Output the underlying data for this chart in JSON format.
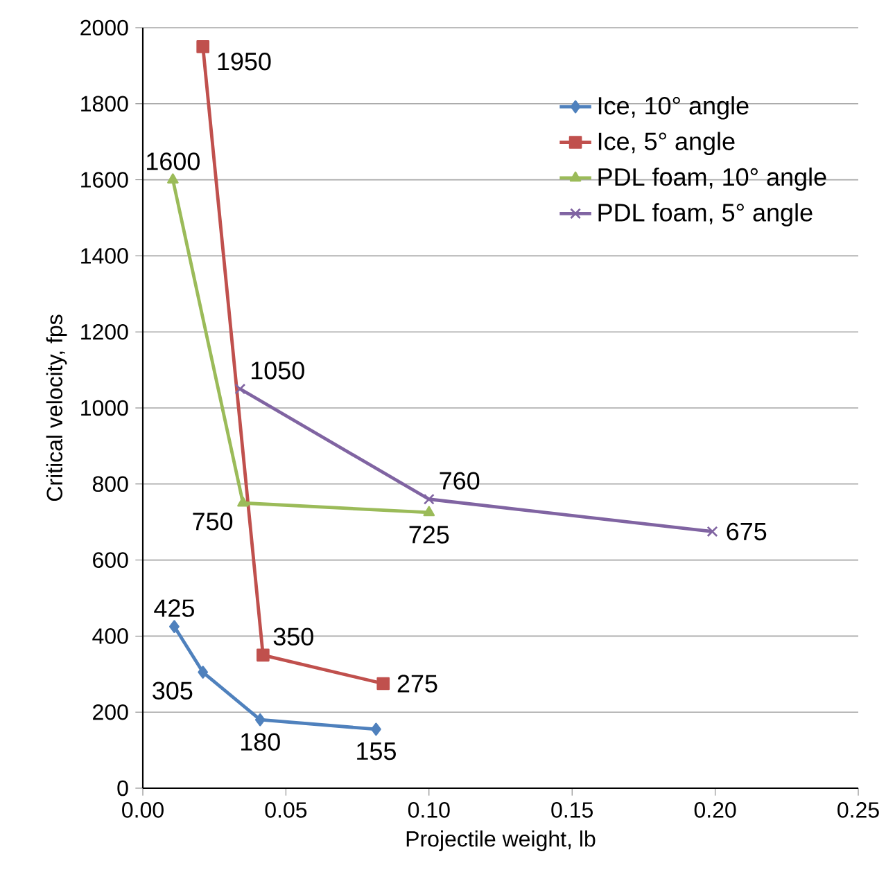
{
  "chart_data": {
    "type": "line",
    "xlabel": "Projectile weight, lb",
    "ylabel": "Critical velocity, fps",
    "xlim": [
      0,
      0.25
    ],
    "ylim": [
      0,
      2000
    ],
    "xticks": [
      {
        "value": 0,
        "label": "0.00"
      },
      {
        "value": 0.05,
        "label": "0.05"
      },
      {
        "value": 0.1,
        "label": "0.10"
      },
      {
        "value": 0.15,
        "label": "0.15"
      },
      {
        "value": 0.2,
        "label": "0.20"
      },
      {
        "value": 0.25,
        "label": "0.25"
      }
    ],
    "yticks": [
      0,
      200,
      400,
      600,
      800,
      1000,
      1200,
      1400,
      1600,
      1800,
      2000
    ],
    "grid": "y",
    "legend": "top right",
    "data_labels": true,
    "series": [
      {
        "name": "Ice, 10° angle",
        "color": "#4f81bd",
        "marker": "diamond",
        "x": [
          0.011,
          0.021,
          0.041,
          0.0815
        ],
        "values": [
          425,
          305,
          180,
          155
        ]
      },
      {
        "name": "Ice, 5° angle",
        "color": "#c0504d",
        "marker": "square",
        "x": [
          0.021,
          0.042,
          0.084
        ],
        "values": [
          1950,
          350,
          275
        ]
      },
      {
        "name": "PDL foam, 10° angle",
        "color": "#9bbb59",
        "marker": "triangle",
        "x": [
          0.0105,
          0.035,
          0.1
        ],
        "values": [
          1600,
          750,
          725
        ]
      },
      {
        "name": "PDL foam, 5° angle",
        "color": "#8064a2",
        "marker": "cross",
        "x": [
          0.034,
          0.1,
          0.199
        ],
        "values": [
          1050,
          760,
          675
        ]
      }
    ]
  }
}
